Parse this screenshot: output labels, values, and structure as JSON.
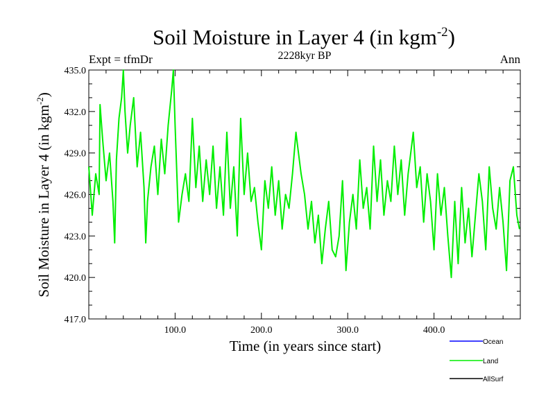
{
  "chart_data": {
    "type": "line",
    "title": "Soil Moisture in Layer 4 (in kgm",
    "title_superscript": "-2",
    "title_close": ")",
    "subtitle": "2228kyr BP",
    "left_label": "Expt = tfmDr",
    "right_label": "Ann",
    "xlabel": "Time (in years since start)",
    "ylabel": "Soil Moisture in Layer 4 (in kgm",
    "ylabel_superscript": "-2",
    "ylabel_close": ")",
    "xlim": [
      0,
      500
    ],
    "ylim": [
      417,
      435
    ],
    "x_ticks": [
      100,
      200,
      300,
      400
    ],
    "x_tick_labels": [
      "100.0",
      "200.0",
      "300.0",
      "400.0"
    ],
    "y_ticks": [
      417,
      420,
      423,
      426,
      429,
      432,
      435
    ],
    "y_tick_labels": [
      "417.0",
      "420.0",
      "423.0",
      "426.0",
      "429.0",
      "432.0",
      "435.0"
    ],
    "series": [
      {
        "name": "Ocean",
        "color": "#0000ff",
        "values": []
      },
      {
        "name": "Land",
        "color": "#00ee00",
        "x": [
          0,
          4,
          8,
          12,
          13,
          16,
          20,
          24,
          28,
          30,
          32,
          35,
          38,
          40,
          42,
          45,
          48,
          52,
          56,
          60,
          64,
          66,
          68,
          72,
          76,
          80,
          84,
          88,
          92,
          96,
          98,
          100,
          104,
          108,
          112,
          116,
          120,
          124,
          128,
          132,
          136,
          140,
          144,
          148,
          152,
          156,
          160,
          164,
          168,
          172,
          176,
          180,
          184,
          188,
          192,
          196,
          200,
          204,
          208,
          212,
          216,
          220,
          224,
          228,
          232,
          236,
          240,
          242,
          246,
          250,
          254,
          258,
          262,
          266,
          270,
          274,
          278,
          282,
          286,
          290,
          294,
          298,
          302,
          306,
          310,
          314,
          318,
          322,
          326,
          330,
          334,
          338,
          342,
          346,
          350,
          354,
          358,
          362,
          366,
          370,
          374,
          376,
          380,
          384,
          388,
          392,
          396,
          400,
          404,
          408,
          412,
          416,
          420,
          424,
          428,
          432,
          436,
          440,
          444,
          448,
          452,
          456,
          460,
          464,
          468,
          472,
          476,
          480,
          484,
          488,
          492,
          496,
          499
        ],
        "values": [
          428.0,
          424.5,
          427.5,
          426.0,
          432.5,
          430.0,
          427.0,
          429.0,
          425.5,
          422.5,
          428.5,
          431.5,
          433.0,
          435.0,
          432.0,
          429.0,
          431.0,
          433.0,
          428.0,
          430.5,
          426.5,
          422.5,
          425.5,
          428.0,
          429.5,
          426.0,
          430.0,
          427.5,
          431.0,
          433.5,
          435.0,
          431.0,
          424.0,
          426.0,
          427.5,
          425.5,
          431.5,
          426.5,
          429.5,
          425.5,
          428.5,
          426.0,
          429.5,
          425.0,
          428.0,
          424.5,
          430.5,
          425.0,
          428.0,
          423.0,
          431.5,
          426.0,
          429.0,
          425.5,
          426.5,
          424.0,
          422.0,
          427.0,
          425.0,
          428.0,
          424.5,
          427.0,
          423.5,
          426.0,
          425.0,
          427.5,
          430.5,
          429.5,
          427.5,
          426.0,
          423.5,
          425.5,
          422.5,
          424.5,
          421.0,
          423.5,
          425.5,
          422.0,
          421.5,
          423.0,
          427.0,
          420.5,
          424.0,
          426.0,
          423.5,
          428.5,
          425.0,
          426.5,
          423.5,
          429.5,
          425.5,
          428.5,
          424.5,
          427.0,
          425.5,
          429.5,
          426.0,
          428.5,
          424.5,
          427.5,
          429.5,
          430.5,
          426.5,
          428.0,
          424.0,
          427.5,
          425.5,
          422.0,
          427.5,
          424.5,
          426.5,
          423.0,
          420.0,
          425.5,
          421.0,
          426.5,
          422.5,
          425.0,
          421.5,
          424.5,
          427.5,
          425.5,
          422.0,
          428.0,
          425.0,
          423.5,
          426.5,
          424.0,
          420.5,
          427.0,
          428.0,
          424.5,
          423.5
        ]
      },
      {
        "name": "AllSurf",
        "color": "#000000",
        "values": []
      }
    ],
    "legend": [
      "Ocean",
      "Land",
      "AllSurf"
    ],
    "legend_position": "bottom-right"
  }
}
